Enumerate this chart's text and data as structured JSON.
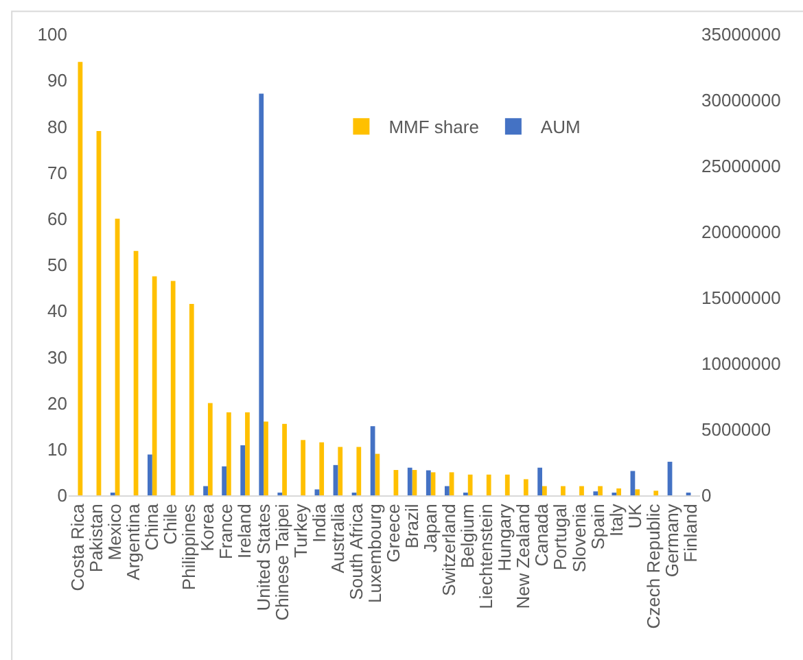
{
  "chart_data": {
    "type": "bar",
    "categories": [
      "Costa Rica",
      "Pakistan",
      "Mexico",
      "Argentina",
      "China",
      "Chile",
      "Philippines",
      "Korea",
      "France",
      "Ireland",
      "United States",
      "Chinese Taipei",
      "Turkey",
      "India",
      "Australia",
      "South Africa",
      "Luxembourg",
      "Greece",
      "Brazil",
      "Japan",
      "Switzerland",
      "Belgium",
      "Liechtenstein",
      "Hungary",
      "New Zealand",
      "Canada",
      "Portugal",
      "Slovenia",
      "Spain",
      "Italy",
      "UK",
      "Czech Republic",
      "Germany",
      "Finland"
    ],
    "series": [
      {
        "name": "AUM",
        "color": "#4472c4",
        "axis": "y2",
        "values": [
          0,
          0,
          200000,
          0,
          3100000,
          0,
          0,
          700000,
          2200000,
          3800000,
          30500000,
          200000,
          0,
          450000,
          2300000,
          200000,
          5250000,
          0,
          2100000,
          1900000,
          700000,
          200000,
          0,
          0,
          0,
          2100000,
          0,
          0,
          300000,
          200000,
          1850000,
          0,
          2550000,
          200000
        ]
      },
      {
        "name": "MMF share",
        "color": "#ffc000",
        "values": [
          94,
          79,
          60,
          53,
          47.5,
          46.5,
          41.5,
          20,
          18,
          18,
          16,
          15.5,
          12,
          11.5,
          10.5,
          10.5,
          9,
          5.5,
          5.5,
          5,
          5,
          4.5,
          4.5,
          4.5,
          3.5,
          2,
          2,
          2,
          2,
          1.5,
          1.3,
          1,
          0,
          0
        ]
      }
    ],
    "ylim": [
      0,
      100
    ],
    "yticks": [
      0,
      10,
      20,
      30,
      40,
      50,
      60,
      70,
      80,
      90,
      100
    ],
    "y2lim": [
      0,
      35000000
    ],
    "y2ticks": [
      0,
      5000000,
      10000000,
      15000000,
      20000000,
      25000000,
      30000000,
      35000000
    ],
    "grid": false,
    "legend": "top right"
  }
}
